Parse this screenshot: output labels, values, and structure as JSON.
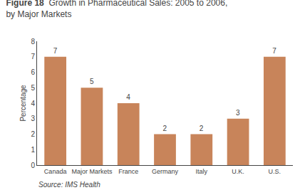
{
  "chart_data": {
    "type": "bar",
    "title": "Figure 18",
    "subtitle": "Growth in Pharmaceutical Sales: 2005 to 2006,\nby Major Markets",
    "ylabel": "Percentage",
    "annotations": [
      "Source: IMS Health"
    ],
    "categories": [
      "Canada",
      "Major Markets",
      "France",
      "Germany",
      "Italy",
      "U.K.",
      "U.S."
    ],
    "values": [
      7,
      5,
      4,
      2,
      2,
      3,
      7
    ],
    "color": "#c8845a",
    "ylim": [
      0,
      8
    ],
    "yticks": [
      0,
      1,
      2,
      3,
      4,
      5,
      6,
      7,
      8
    ],
    "grid": false,
    "data_labels": true
  }
}
